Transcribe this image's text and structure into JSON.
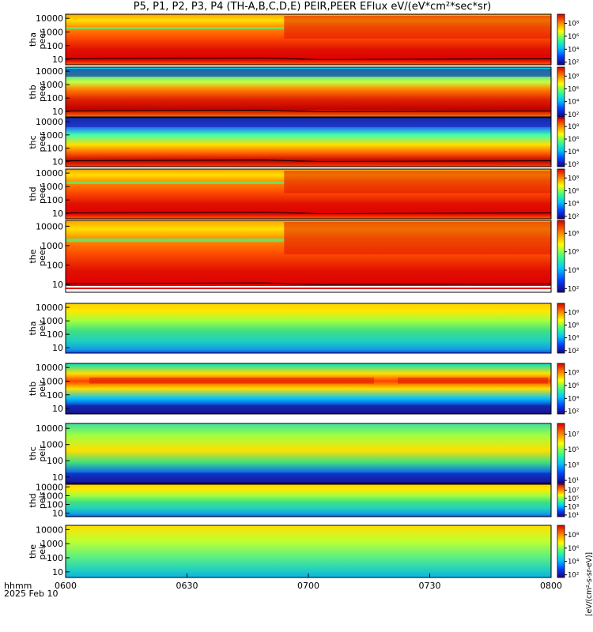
{
  "chart_data": {
    "type": "heatmap",
    "title": "P5, P1, P2, P3, P4 (TH-A,B,C,D,E) PEIR,PEER EFlux eV/(eV*cm²*sec*sr)",
    "x_axis": {
      "tick_labels": [
        "0600",
        "0630",
        "0700",
        "0730",
        "0800"
      ],
      "range": [
        "06:00",
        "08:00"
      ],
      "corner_label": "hhmm",
      "date_label": "2025 Feb 10"
    },
    "y_axis": {
      "scale": "log",
      "units": "eV",
      "tick_labels": [
        "10",
        "100",
        "1000",
        "10000"
      ]
    },
    "colorbar_label": "[eV/(cm²-s-sr-eV)]",
    "colormap": [
      "#1a0080",
      "#0040ff",
      "#00c8ff",
      "#40ff80",
      "#ffff00",
      "#ff8000",
      "#dd0000"
    ],
    "panels": [
      {
        "label": [
          "tha",
          "peer"
        ],
        "species": "electron",
        "probe": "P5",
        "cb_min_exp": 2,
        "cb_max_exp": 8,
        "cb_ticks": [
          "10²",
          "10⁴",
          "10⁶",
          "10⁸"
        ]
      },
      {
        "label": [
          "thb",
          "peer"
        ],
        "species": "electron",
        "probe": "P1",
        "cb_min_exp": 2,
        "cb_max_exp": 8,
        "cb_ticks": [
          "10²",
          "10⁴",
          "10⁶",
          "10⁸"
        ]
      },
      {
        "label": [
          "thc",
          "peer"
        ],
        "species": "electron",
        "probe": "P2",
        "cb_min_exp": 2,
        "cb_max_exp": 8,
        "cb_ticks": [
          "10²",
          "10⁴",
          "10⁶",
          "10⁸"
        ]
      },
      {
        "label": [
          "thd",
          "peer"
        ],
        "species": "electron",
        "probe": "P3",
        "cb_min_exp": 2,
        "cb_max_exp": 8,
        "cb_ticks": [
          "10²",
          "10⁴",
          "10⁶",
          "10⁸"
        ]
      },
      {
        "label": [
          "the",
          "peer"
        ],
        "species": "electron",
        "probe": "P4",
        "cb_min_exp": 2,
        "cb_max_exp": 8,
        "cb_ticks": [
          "10²",
          "10⁴",
          "10⁶",
          "10⁸"
        ]
      },
      {
        "label": [
          "tha",
          "peir"
        ],
        "species": "ion",
        "probe": "P5",
        "cb_min_exp": 2,
        "cb_max_exp": 8,
        "cb_ticks": [
          "10²",
          "10⁴",
          "10⁶",
          "10⁸"
        ]
      },
      {
        "label": [
          "thb",
          "peir"
        ],
        "species": "ion",
        "probe": "P1",
        "cb_min_exp": 2,
        "cb_max_exp": 8,
        "cb_ticks": [
          "10²",
          "10⁴",
          "10⁶",
          "10⁸"
        ]
      },
      {
        "label": [
          "thc",
          "peir"
        ],
        "species": "ion",
        "probe": "P2",
        "cb_min_exp": 1,
        "cb_max_exp": 7,
        "cb_ticks": [
          "10¹",
          "10³",
          "10⁵",
          "10⁷"
        ]
      },
      {
        "label": [
          "thd",
          "peir"
        ],
        "species": "ion",
        "probe": "P3",
        "cb_min_exp": 1,
        "cb_max_exp": 7,
        "cb_ticks": [
          "10¹",
          "10³",
          "10⁵",
          "10⁷"
        ]
      },
      {
        "label": [
          "the",
          "peir"
        ],
        "species": "ion",
        "probe": "P4",
        "cb_min_exp": 2,
        "cb_max_exp": 8,
        "cb_ticks": [
          "10²",
          "10⁴",
          "10⁶",
          "10⁸"
        ]
      }
    ]
  }
}
